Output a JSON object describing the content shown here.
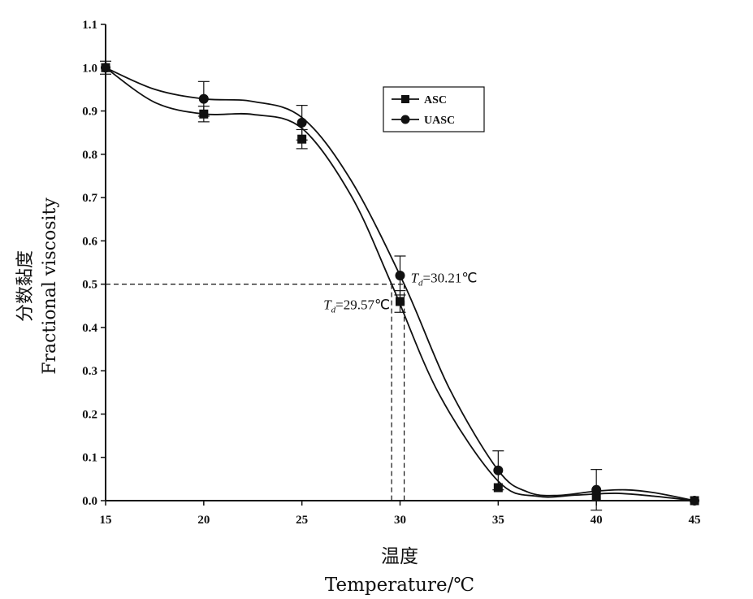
{
  "chart_data": {
    "type": "line",
    "xlabel_cn": "温度",
    "xlabel_en": "Temperature/℃",
    "ylabel_cn": "分数黏度",
    "ylabel_en": "Fractional  viscosity",
    "xlim": [
      15,
      45
    ],
    "ylim": [
      0.0,
      1.1
    ],
    "xticks": [
      "15",
      "20",
      "25",
      "30",
      "35",
      "40",
      "45"
    ],
    "yticks": [
      "0.0",
      "0.1",
      "0.2",
      "0.3",
      "0.4",
      "0.5",
      "0.6",
      "0.7",
      "0.8",
      "0.9",
      "1.0",
      "1.1"
    ],
    "grid": false,
    "legend_position": "top-right",
    "series": [
      {
        "name": "ASC",
        "marker": "square",
        "x": [
          15,
          20,
          25,
          30,
          35,
          40,
          45
        ],
        "y": [
          1.0,
          0.893,
          0.835,
          0.46,
          0.03,
          0.01,
          0.0
        ],
        "err": [
          0.0,
          0.018,
          0.022,
          0.025,
          0.0,
          0.0,
          0.0
        ],
        "curve": [
          [
            15,
            1.0
          ],
          [
            17.5,
            0.92
          ],
          [
            20,
            0.893
          ],
          [
            22.5,
            0.892
          ],
          [
            25,
            0.86
          ],
          [
            27.5,
            0.705
          ],
          [
            29.57,
            0.5
          ],
          [
            32,
            0.245
          ],
          [
            35,
            0.045
          ],
          [
            37,
            0.01
          ],
          [
            39,
            0.013
          ],
          [
            41,
            0.017
          ],
          [
            43,
            0.01
          ],
          [
            45,
            0.0
          ]
        ]
      },
      {
        "name": "UASC",
        "marker": "circle",
        "x": [
          15,
          20,
          25,
          30,
          35,
          40,
          45
        ],
        "y": [
          1.0,
          0.928,
          0.873,
          0.52,
          0.07,
          0.025,
          0.0
        ],
        "err": [
          0.015,
          0.04,
          0.04,
          0.045,
          0.045,
          0.047,
          0.0
        ],
        "curve": [
          [
            15,
            1.0
          ],
          [
            17.5,
            0.95
          ],
          [
            20,
            0.928
          ],
          [
            22.5,
            0.922
          ],
          [
            25,
            0.885
          ],
          [
            27.5,
            0.74
          ],
          [
            30.21,
            0.5
          ],
          [
            32.5,
            0.26
          ],
          [
            35,
            0.07
          ],
          [
            36.5,
            0.02
          ],
          [
            38,
            0.012
          ],
          [
            40,
            0.022
          ],
          [
            41.5,
            0.025
          ],
          [
            43,
            0.018
          ],
          [
            45,
            0.0
          ]
        ]
      }
    ],
    "annotations": [
      {
        "label_T": "T",
        "label_d": "d",
        "label_rest": "=29.57℃",
        "x": 29.57,
        "y": 0.5
      },
      {
        "label_T": "T",
        "label_d": "d",
        "label_rest": "=30.21℃",
        "x": 30.21,
        "y": 0.5
      }
    ]
  },
  "colors": {
    "line": "#111111",
    "axis": "#111111"
  }
}
